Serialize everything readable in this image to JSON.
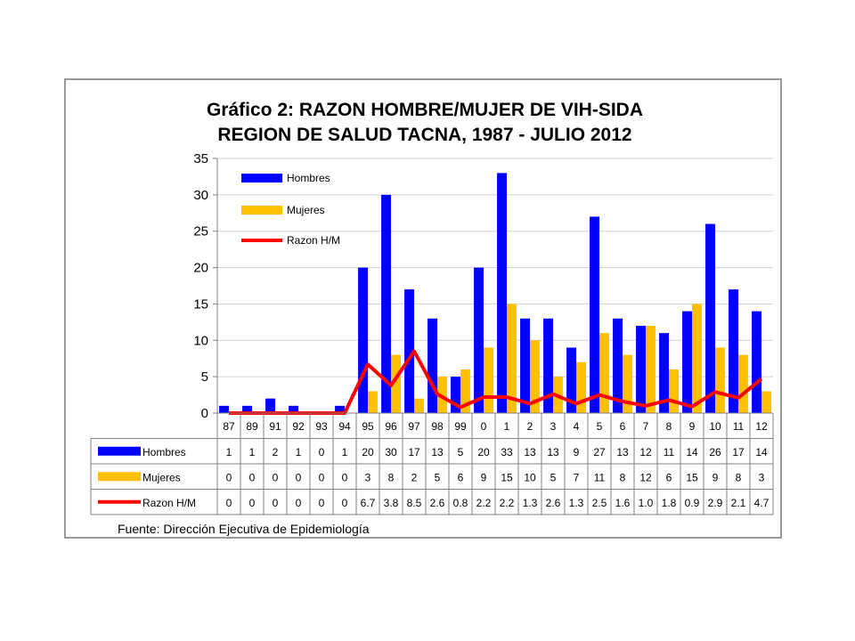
{
  "chart_data": {
    "type": "bar",
    "title": "Gráfico 2: RAZON HOMBRE/MUJER DE VIH-SIDA",
    "subtitle": "REGION DE SALUD TACNA, 1987 -  JULIO 2012",
    "categories": [
      "87",
      "89",
      "91",
      "92",
      "93",
      "94",
      "95",
      "96",
      "97",
      "98",
      "99",
      "0",
      "1",
      "2",
      "3",
      "4",
      "5",
      "6",
      "7",
      "8",
      "9",
      "10",
      "11",
      "12"
    ],
    "ylim": [
      0,
      35
    ],
    "yticks": [
      0,
      5,
      10,
      15,
      20,
      25,
      30,
      35
    ],
    "grid": true,
    "legend_placement": "top-left",
    "series": [
      {
        "name": "Hombres",
        "kind": "bar",
        "color": "#0000ff",
        "values": [
          1,
          1,
          2,
          1,
          0,
          1,
          20,
          30,
          17,
          13,
          5,
          20,
          33,
          13,
          13,
          9,
          27,
          13,
          12,
          11,
          14,
          26,
          17,
          14
        ],
        "labels": [
          "1",
          "1",
          "2",
          "1",
          "0",
          "1",
          "20",
          "30",
          "17",
          "13",
          "5",
          "20",
          "33",
          "13",
          "13",
          "9",
          "27",
          "13",
          "12",
          "11",
          "14",
          "26",
          "17",
          "14"
        ]
      },
      {
        "name": "Mujeres",
        "kind": "bar",
        "color": "#ffc000",
        "values": [
          0,
          0,
          0,
          0,
          0,
          0,
          3,
          8,
          2,
          5,
          6,
          9,
          15,
          10,
          5,
          7,
          11,
          8,
          12,
          6,
          15,
          9,
          8,
          3
        ],
        "labels": [
          "0",
          "0",
          "0",
          "0",
          "0",
          "0",
          "3",
          "8",
          "2",
          "5",
          "6",
          "9",
          "15",
          "10",
          "5",
          "7",
          "11",
          "8",
          "12",
          "6",
          "15",
          "9",
          "8",
          "3"
        ]
      },
      {
        "name": "Razon H/M",
        "kind": "line",
        "color": "#ff0000",
        "values": [
          0,
          0,
          0,
          0,
          0,
          0,
          6.7,
          3.8,
          8.5,
          2.6,
          0.8,
          2.2,
          2.2,
          1.3,
          2.6,
          1.3,
          2.5,
          1.6,
          1.0,
          1.8,
          0.9,
          2.9,
          2.1,
          4.7
        ],
        "labels": [
          "0",
          "0",
          "0",
          "0",
          "0",
          "0",
          "6.7",
          "3.8",
          "8.5",
          "2.6",
          "0.8",
          "2.2",
          "2.2",
          "1.3",
          "2.6",
          "1.3",
          "2.5",
          "1.6",
          "1.0",
          "1.8",
          "0.9",
          "2.9",
          "2.1",
          "4.7"
        ]
      }
    ]
  },
  "source": "Fuente: Dirección Ejecutiva de Epidemiología"
}
